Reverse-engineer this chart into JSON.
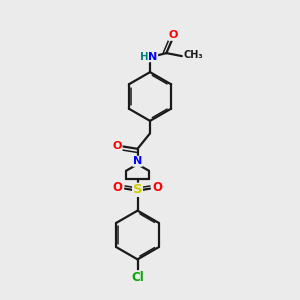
{
  "bg_color": "#ebebeb",
  "bond_color": "#1a1a1a",
  "bond_width": 1.6,
  "atom_colors": {
    "N": "#0000ff",
    "O": "#ff0000",
    "S": "#cccc00",
    "Cl": "#00aa00",
    "C": "#1a1a1a",
    "H": "#008080"
  },
  "fig_size": [
    3.0,
    3.0
  ],
  "dpi": 100
}
